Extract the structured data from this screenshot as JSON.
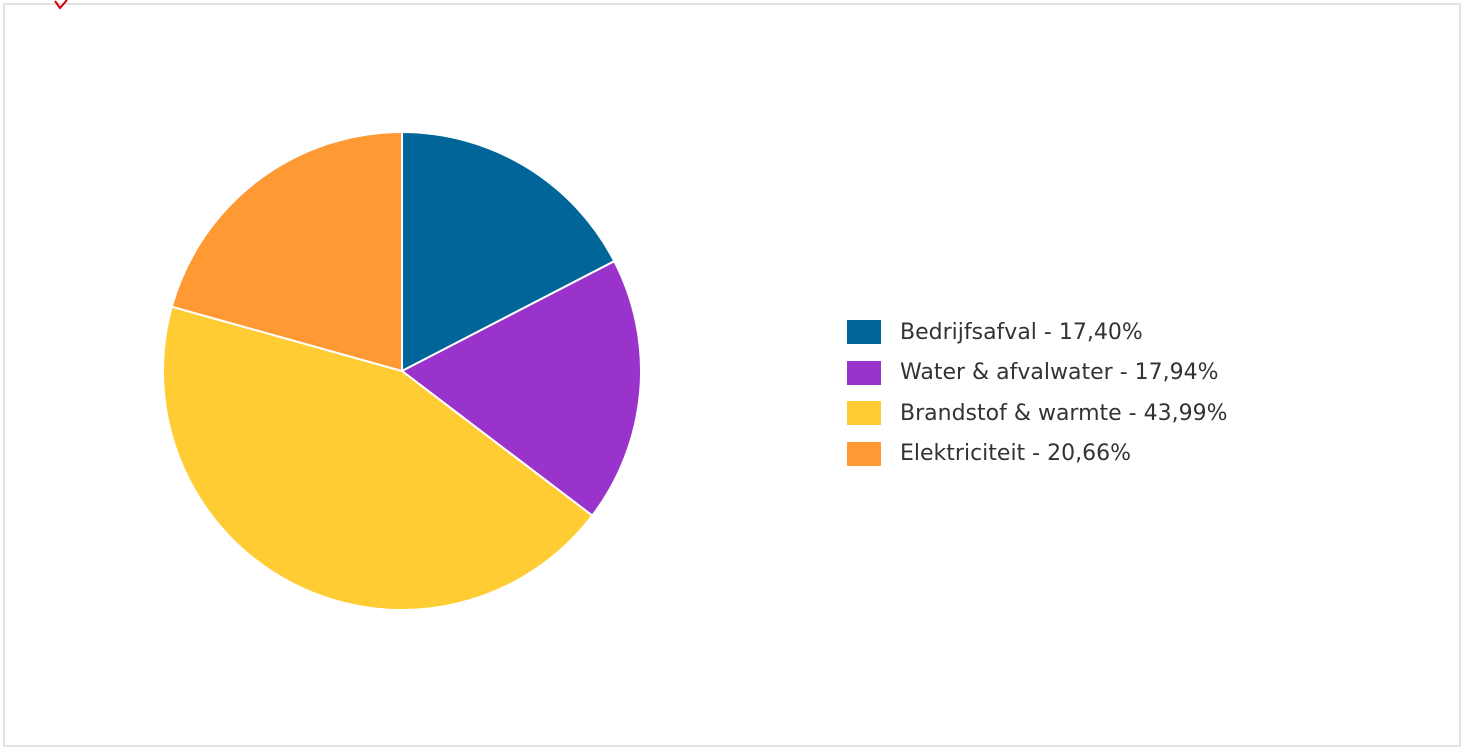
{
  "chart_data": {
    "type": "pie",
    "categories": [
      "Bedrijfsafval",
      "Water & afvalwater",
      "Brandstof & warmte",
      "Elektriciteit"
    ],
    "values": [
      17.4,
      17.94,
      43.99,
      20.66
    ],
    "unit": "%",
    "colors": [
      "#006699",
      "#9933cc",
      "#ffcc33",
      "#ff9933"
    ],
    "legend": {
      "placement": "right",
      "entries": [
        "Bedrijfsafval - 17,40%",
        "Water & afvalwater - 17,94%",
        "Brandstof & warmte - 43,99%",
        "Elektriciteit - 20,66%"
      ]
    },
    "title": ""
  },
  "colors": {
    "corner_mark": "#cc0000"
  }
}
